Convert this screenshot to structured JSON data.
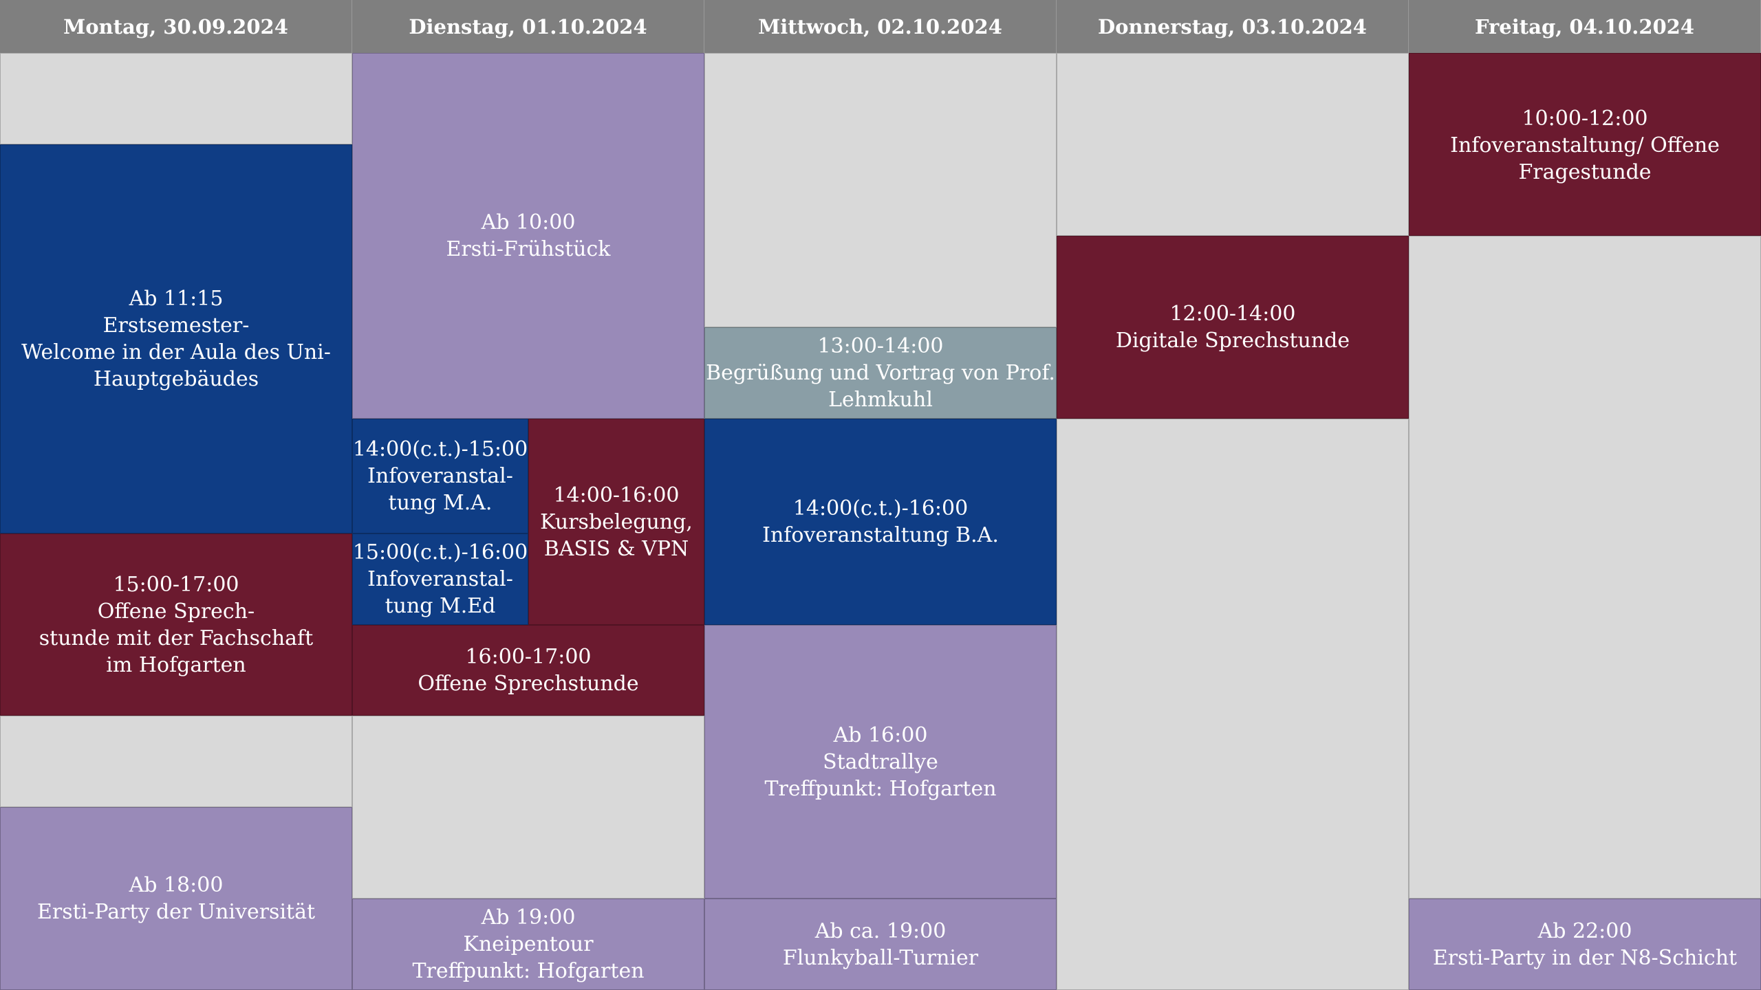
{
  "colors": {
    "header": "#7f7f7f",
    "empty": "#d9d9d9",
    "blue": "#0f3d85",
    "red": "#6b1a2f",
    "purple": "#998ab8",
    "grayblue": "#8a9ea6"
  },
  "days": [
    "Montag, 30.09.2024",
    "Dienstag, 01.10.2024",
    "Mittwoch, 02.10.2024",
    "Donnerstag, 03.10.2024",
    "Freitag, 04.10.2024"
  ],
  "events": {
    "mo_welcome": [
      "Ab 11:15",
      "Erstsemester-",
      "Welcome in der Aula des Uni-",
      "Hauptgebäudes"
    ],
    "mo_sprechstunde": [
      "15:00-17:00",
      "Offene Sprech-",
      "stunde mit der Fachschaft",
      "im Hofgarten"
    ],
    "mo_party": [
      "Ab 18:00",
      "Ersti-Party der Universität"
    ],
    "di_fruehstueck": [
      "Ab 10:00",
      "Ersti-Frühstück"
    ],
    "di_info_ma": [
      "14:00(c.t.)-15:00",
      "Infoveranstal-",
      "tung M.A."
    ],
    "di_info_med": [
      "15:00(c.t.)-16:00",
      "Infoveranstal-",
      "tung M.Ed"
    ],
    "di_kursbelegung": [
      "14:00-16:00",
      "Kursbelegung,",
      "BASIS & VPN"
    ],
    "di_sprechstunde": [
      "16:00-17:00",
      "Offene Sprechstunde"
    ],
    "di_kneipentour": [
      "Ab 19:00",
      "Kneipentour",
      "Treffpunkt: Hofgarten"
    ],
    "mi_vortrag": [
      "13:00-14:00",
      "Begrüßung und Vortrag von Prof.",
      "Lehmkuhl"
    ],
    "mi_info_ba": [
      "14:00(c.t.)-16:00",
      "Infoveranstaltung B.A."
    ],
    "mi_stadtrallye": [
      "Ab 16:00",
      "Stadtrallye",
      "Treffpunkt: Hofgarten"
    ],
    "mi_flunkyball": [
      "Ab ca. 19:00",
      "Flunkyball-Turnier"
    ],
    "do_sprechstunde": [
      "12:00-14:00",
      "Digitale Sprechstunde"
    ],
    "fr_info": [
      "10:00-12:00",
      "Infoveranstaltung/ Offene",
      "Fragestunde"
    ],
    "fr_party": [
      "Ab 22:00",
      "Ersti-Party in der N8-Schicht"
    ]
  }
}
